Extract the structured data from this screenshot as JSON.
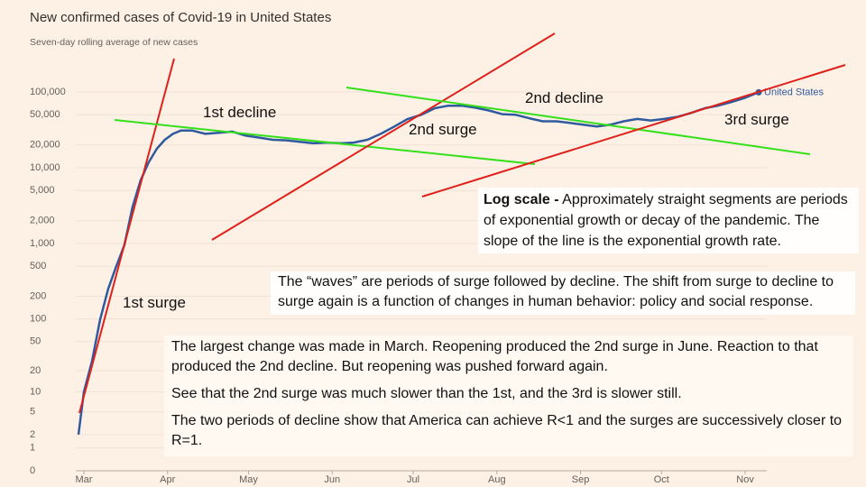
{
  "chart_data": {
    "type": "line",
    "title": "New confirmed cases of Covid-19 in United States",
    "subtitle": "Seven-day rolling average of new cases",
    "yscale": "log1p",
    "grid": true,
    "xlim": [
      -3,
      253
    ],
    "xticks": [
      {
        "value": 0,
        "label": "Mar"
      },
      {
        "value": 31,
        "label": "Apr"
      },
      {
        "value": 61,
        "label": "May"
      },
      {
        "value": 92,
        "label": "Jun"
      },
      {
        "value": 122,
        "label": "Jul"
      },
      {
        "value": 153,
        "label": "Aug"
      },
      {
        "value": 184,
        "label": "Sep"
      },
      {
        "value": 214,
        "label": "Oct"
      },
      {
        "value": 245,
        "label": "Nov"
      }
    ],
    "ylim": [
      0,
      100000
    ],
    "yticks": [
      0,
      1,
      2,
      5,
      10,
      20,
      50,
      100,
      200,
      500,
      {
        "value": 1000,
        "label": "1,000"
      },
      {
        "value": 2000,
        "label": "2,000"
      },
      {
        "value": 5000,
        "label": "5,000"
      },
      {
        "value": 10000,
        "label": "10,000"
      },
      {
        "value": 20000,
        "label": "20,000"
      },
      {
        "value": 50000,
        "label": "50,000"
      },
      {
        "value": 100000,
        "label": "100,000"
      }
    ],
    "x": [
      -2,
      0,
      3,
      6,
      9,
      12,
      15,
      18,
      21,
      24,
      27,
      30,
      33,
      36,
      40,
      45,
      50,
      55,
      60,
      65,
      70,
      75,
      80,
      85,
      90,
      95,
      100,
      105,
      110,
      115,
      120,
      125,
      130,
      135,
      140,
      145,
      150,
      155,
      160,
      165,
      170,
      175,
      180,
      185,
      190,
      195,
      200,
      205,
      210,
      215,
      220,
      225,
      230,
      235,
      240,
      245,
      250
    ],
    "series": [
      {
        "name": "United States",
        "color": "#2f5b9e",
        "values": [
          2,
          10,
          27,
          97,
          250,
          500,
          950,
          3000,
          6800,
          11800,
          17800,
          23400,
          28000,
          31000,
          31000,
          28000,
          29000,
          30000,
          26500,
          25000,
          23400,
          23000,
          22000,
          21000,
          21500,
          21000,
          21500,
          23400,
          28000,
          35000,
          44000,
          50000,
          61000,
          66000,
          66000,
          62000,
          57000,
          51000,
          50000,
          45000,
          41000,
          41000,
          39000,
          37000,
          35000,
          37000,
          41000,
          44000,
          42000,
          44000,
          47000,
          53000,
          61000,
          66000,
          74000,
          84000,
          99000
        ]
      }
    ],
    "annotations": [
      "1st decline",
      "2nd decline",
      "2nd surge",
      "3rd surge",
      "1st surge"
    ],
    "note_bold": "Log scale -",
    "notes": [
      "Approximately straight segments are periods of exponential growth or decay of the pandemic. The slope of the line is the exponential growth rate.",
      "The “waves” are periods of surge followed by decline. The shift from surge to decline to surge again is a function of changes in human behavior: policy and social response.",
      "The largest change was made in March. Reopening produced the 2nd surge in June. Reaction to that produced the 2nd decline. But reopening was pushed forward again.",
      "See that the 2nd surge was much slower than the 1st, and the 3rd is slower still.",
      "The two periods of decline show that America can achieve R<1 and the surges are successively closer to R=1."
    ]
  }
}
